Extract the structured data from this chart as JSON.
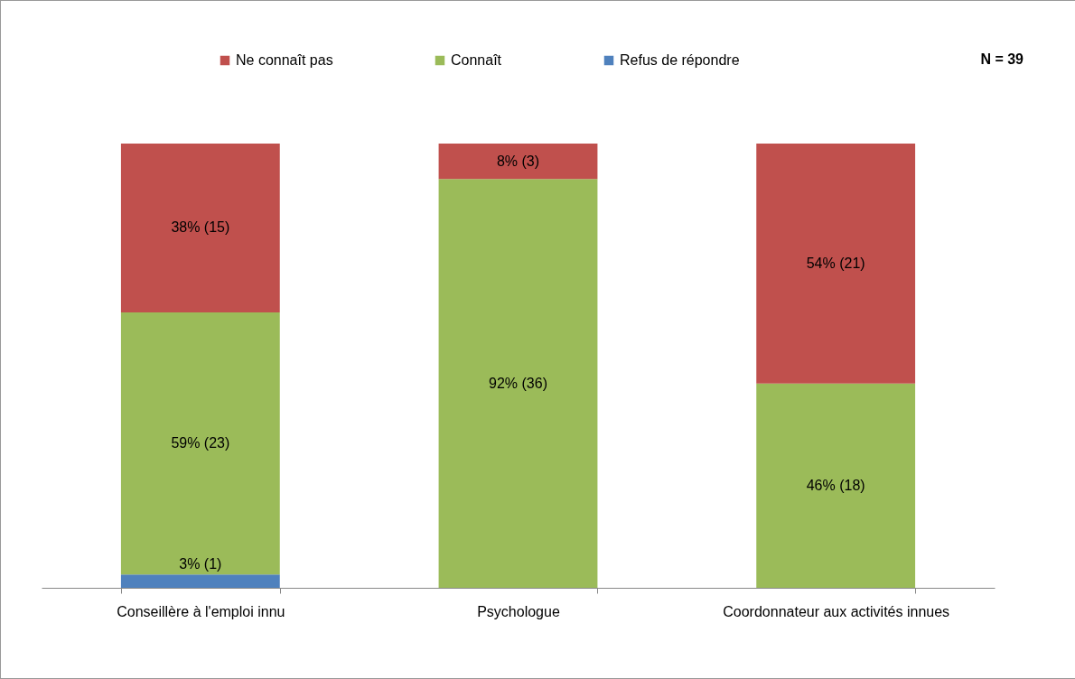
{
  "chart_data": {
    "type": "bar",
    "stacked": true,
    "categories": [
      "Conseillère à l'emploi innu",
      "Psychologue",
      "Coordonnateur aux activités innues"
    ],
    "series": [
      {
        "name": "Refus de répondre",
        "color": "#4f81bd",
        "values": [
          3,
          null,
          null
        ],
        "value_labels": [
          "3% (1)",
          null,
          null
        ]
      },
      {
        "name": "Connaît",
        "color": "#9bbb59",
        "values": [
          59,
          92,
          46
        ],
        "value_labels": [
          "59% (23)",
          "92% (36)",
          "46% (18)"
        ]
      },
      {
        "name": "Ne connaît pas",
        "color": "#c0504d",
        "values": [
          38,
          8,
          54
        ],
        "value_labels": [
          "38% (15)",
          "8% (3)",
          "54% (21)"
        ]
      }
    ],
    "ylim": [
      0,
      100
    ],
    "tick_labels": "x",
    "legend": "top",
    "grid": false,
    "annotations": [
      "N = 39"
    ]
  }
}
